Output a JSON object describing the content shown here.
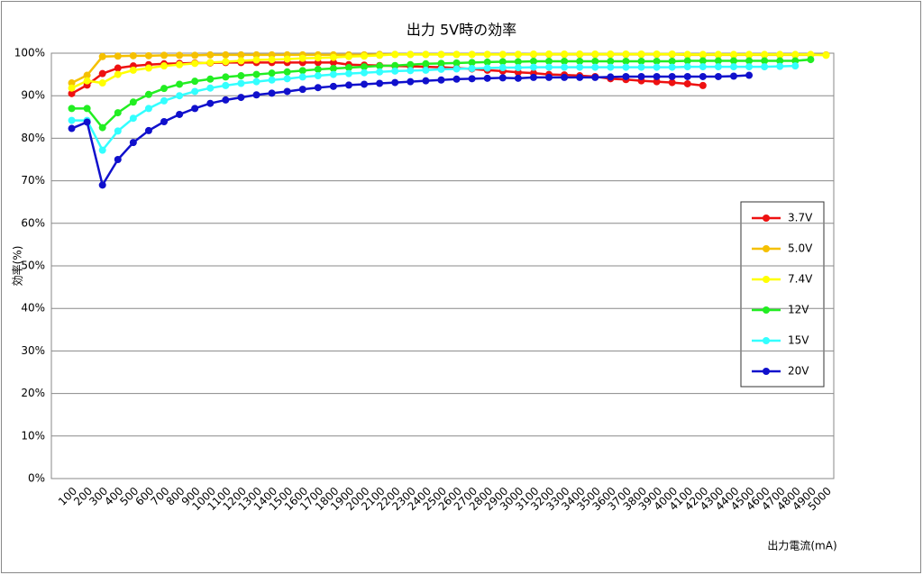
{
  "chart_data": {
    "type": "line",
    "title": "出力 5V時の効率",
    "x_label": "出力電流(mA)",
    "y_label": "効率(%)",
    "categories": [
      "100",
      "200",
      "300",
      "400",
      "500",
      "600",
      "700",
      "800",
      "900",
      "1000",
      "1100",
      "1200",
      "1300",
      "1400",
      "1500",
      "1600",
      "1700",
      "1800",
      "1900",
      "2000",
      "2100",
      "2200",
      "2300",
      "2400",
      "2500",
      "2600",
      "2700",
      "2800",
      "2900",
      "3000",
      "3100",
      "3200",
      "3300",
      "3400",
      "3500",
      "3600",
      "3700",
      "3800",
      "3900",
      "4000",
      "4100",
      "4200",
      "4300",
      "4400",
      "4500",
      "4600",
      "4700",
      "4800",
      "4900",
      "5000"
    ],
    "series": [
      {
        "name": "3.7V",
        "color": "#ee1111",
        "values": [
          90.5,
          92.5,
          95.2,
          96.5,
          97,
          97.3,
          97.5,
          97.6,
          97.7,
          97.7,
          97.8,
          97.8,
          97.8,
          97.8,
          97.8,
          97.8,
          97.8,
          97.8,
          97.3,
          97.2,
          97.1,
          97,
          96.9,
          96.8,
          96.7,
          96.5,
          96.3,
          96,
          95.8,
          95.5,
          95.3,
          95,
          94.9,
          94.7,
          94.5,
          94,
          93.8,
          93.5,
          93.3,
          93.1,
          92.8,
          92.4,
          null,
          null,
          null,
          null,
          null,
          null,
          null,
          null
        ]
      },
      {
        "name": "5.0V",
        "color": "#f5c000",
        "values": [
          93,
          94.8,
          99.2,
          99.3,
          99.4,
          99.4,
          99.5,
          99.5,
          99.5,
          99.6,
          99.6,
          99.6,
          99.6,
          99.6,
          99.6,
          99.6,
          99.6,
          99.6,
          99.6,
          99.6,
          99.7,
          99.7,
          99.7,
          99.7,
          99.7,
          99.7,
          99.7,
          99.7,
          99.7,
          99.7,
          99.7,
          99.7,
          99.7,
          99.7,
          99.7,
          99.7,
          99.7,
          99.7,
          99.7,
          99.7,
          99.6,
          99.6,
          99.6,
          99.6,
          99.6,
          99.6,
          99.6,
          99.6,
          99.6,
          99.6
        ]
      },
      {
        "name": "7.4V",
        "color": "#ffff00",
        "values": [
          91.8,
          93.5,
          93,
          95,
          96,
          96.5,
          97,
          97.3,
          97.6,
          97.8,
          98,
          98.2,
          98.4,
          98.5,
          98.6,
          98.8,
          98.9,
          99,
          99.2,
          99.3,
          99.5,
          99.7,
          99.7,
          99.7,
          99.7,
          99.7,
          99.7,
          99.7,
          99.7,
          99.7,
          99.8,
          99.8,
          99.8,
          99.8,
          99.8,
          99.8,
          99.8,
          99.8,
          99.8,
          99.8,
          99.7,
          99.7,
          99.7,
          99.7,
          99.7,
          99.7,
          99.7,
          99.7,
          99.7,
          99.5
        ]
      },
      {
        "name": "12V",
        "color": "#22ee22",
        "values": [
          87,
          87,
          82.5,
          86,
          88.5,
          90.3,
          91.7,
          92.7,
          93.4,
          93.9,
          94.4,
          94.7,
          95,
          95.3,
          95.6,
          95.9,
          96.2,
          96.4,
          96.6,
          96.8,
          97,
          97.1,
          97.3,
          97.5,
          97.6,
          97.7,
          97.8,
          97.9,
          98,
          98,
          98.1,
          98.1,
          98.1,
          98.1,
          98.1,
          98.1,
          98.1,
          98.1,
          98.1,
          98.1,
          98.2,
          98.2,
          98.2,
          98.2,
          98.2,
          98.2,
          98.2,
          98.2,
          98.5,
          null
        ]
      },
      {
        "name": "15V",
        "color": "#33ffff",
        "values": [
          84.2,
          84.2,
          77.2,
          81.7,
          84.7,
          87,
          88.8,
          90,
          91,
          91.8,
          92.4,
          92.9,
          93.3,
          93.7,
          94,
          94.4,
          94.7,
          95,
          95.2,
          95.4,
          95.6,
          95.8,
          95.9,
          96,
          96.2,
          96.3,
          96.4,
          96.5,
          96.6,
          96.6,
          96.7,
          96.7,
          96.7,
          96.7,
          96.7,
          96.7,
          96.7,
          96.7,
          96.7,
          96.7,
          96.8,
          96.8,
          96.8,
          96.8,
          96.8,
          96.8,
          96.9,
          97,
          null,
          null
        ]
      },
      {
        "name": "20V",
        "color": "#1010cc",
        "values": [
          82.3,
          83.8,
          69,
          75,
          79,
          81.8,
          83.9,
          85.6,
          87,
          88.2,
          89,
          89.6,
          90.2,
          90.6,
          91,
          91.5,
          91.9,
          92.2,
          92.5,
          92.7,
          92.9,
          93.1,
          93.3,
          93.5,
          93.7,
          93.9,
          94,
          94.1,
          94.2,
          94.1,
          94.3,
          94.3,
          94.3,
          94.3,
          94.3,
          94.4,
          94.5,
          94.5,
          94.5,
          94.5,
          94.5,
          94.5,
          94.5,
          94.6,
          94.8,
          null,
          null,
          null,
          null,
          null
        ]
      }
    ],
    "ylim": [
      0,
      100
    ],
    "yticks": [
      {
        "value": 0,
        "label": "0%"
      },
      {
        "value": 10,
        "label": "10%"
      },
      {
        "value": 20,
        "label": "20%"
      },
      {
        "value": 30,
        "label": "30%"
      },
      {
        "value": 40,
        "label": "40%"
      },
      {
        "value": 50,
        "label": "50%"
      },
      {
        "value": 60,
        "label": "60%"
      },
      {
        "value": 70,
        "label": "70%"
      },
      {
        "value": 80,
        "label": "80%"
      },
      {
        "value": 90,
        "label": "90%"
      },
      {
        "value": 100,
        "label": "100%"
      }
    ],
    "grid": true,
    "legend": "right"
  }
}
